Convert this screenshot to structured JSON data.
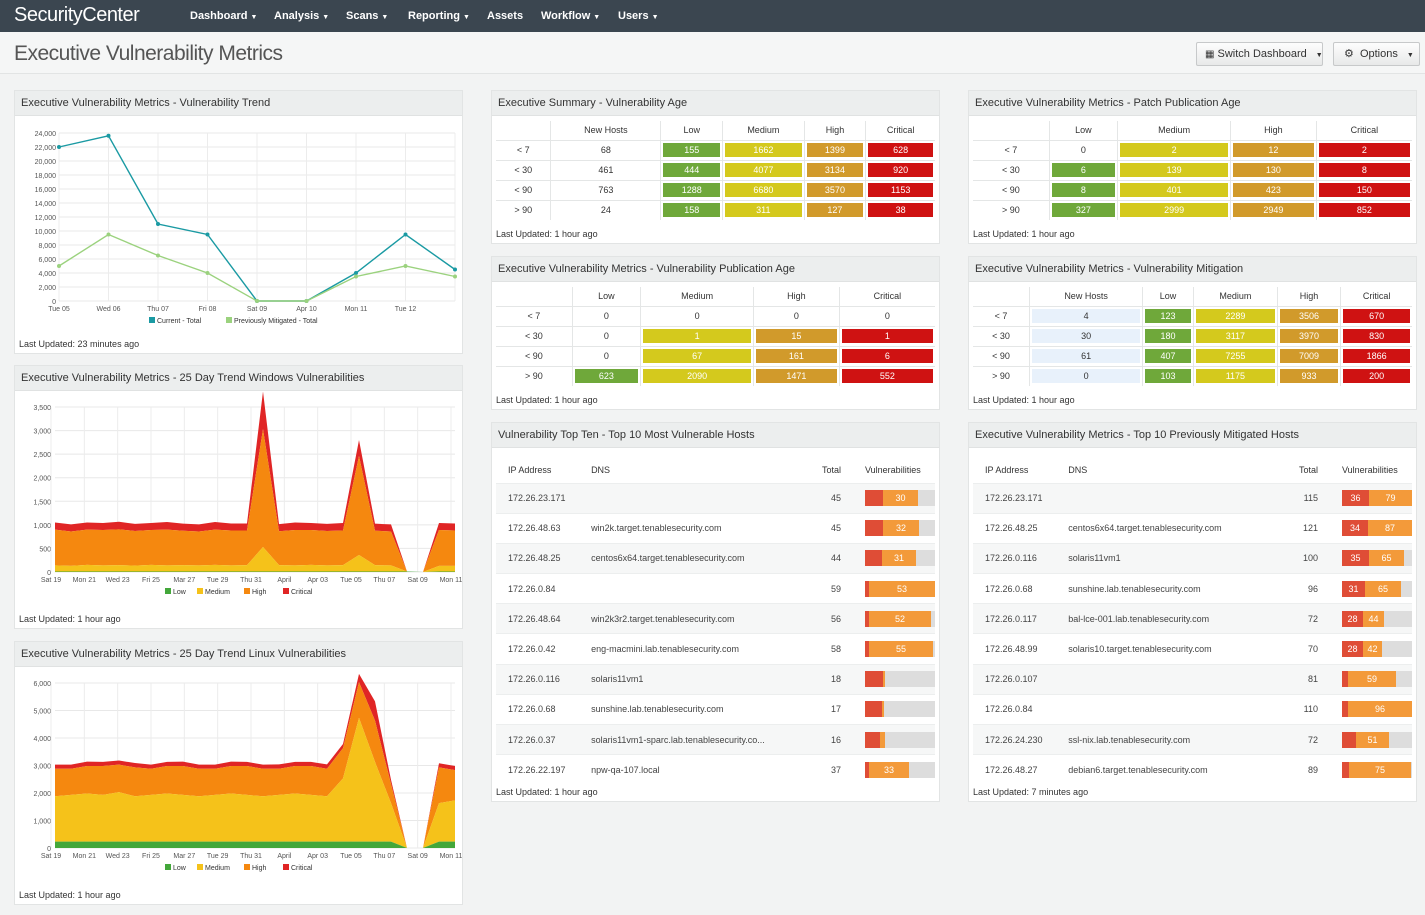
{
  "nav": {
    "brand": "SecurityCenter",
    "items": [
      "Dashboard",
      "Analysis",
      "Scans",
      "Reporting",
      "Assets",
      "Workflow",
      "Users"
    ]
  },
  "page": {
    "title": "Executive Vulnerability Metrics",
    "switch_label": "Switch Dashboard",
    "options_label": "Options"
  },
  "colors": {
    "low": "#6fa83a",
    "medium": "#d4c91d",
    "high": "#d19a2b",
    "critical": "#cf1212",
    "nav_bg": "#3b4650",
    "teal": "#1a9aa3",
    "green_line": "#9bd27e"
  },
  "trend": {
    "title": "Executive Vulnerability Metrics - Vulnerability Trend",
    "updated": "Last Updated: 23 minutes ago",
    "chart_data": {
      "type": "line",
      "x": [
        "Tue 05",
        "Wed 06",
        "Thu 07",
        "Fri 08",
        "Sat 09",
        "Apr 10",
        "Mon 11",
        "Tue 12",
        ""
      ],
      "y_ticks": [
        "24,000",
        "22,000",
        "20,000",
        "18,000",
        "16,000",
        "14,000",
        "12,000",
        "10,000",
        "8,000",
        "6,000",
        "4,000",
        "2,000",
        "0"
      ],
      "ylim": [
        0,
        24000
      ],
      "series": [
        {
          "name": "Current - Total",
          "color": "#1a9aa3",
          "values": [
            22000,
            23600,
            11000,
            9500,
            0,
            0,
            4000,
            9500,
            4500
          ]
        },
        {
          "name": "Previously Mitigated - Total",
          "color": "#9bd27e",
          "values": [
            5000,
            9500,
            6500,
            4000,
            0,
            0,
            3500,
            5000,
            3500
          ]
        }
      ]
    }
  },
  "win": {
    "title": "Executive Vulnerability Metrics - 25 Day Trend Windows Vulnerabilities",
    "updated": "Last Updated: 1 hour ago",
    "chart_data": {
      "type": "area",
      "x_ticks": [
        "Sat 19",
        "Mon 21",
        "Wed 23",
        "Fri 25",
        "Mar 27",
        "Tue 29",
        "Thu 31",
        "April",
        "Apr 03",
        "Tue 05",
        "Thu 07",
        "Sat 09",
        "Mon 11"
      ],
      "y_ticks": [
        "3,500",
        "3,000",
        "2,500",
        "2,000",
        "1,500",
        "1,000",
        "500",
        "0"
      ],
      "ylim": [
        0,
        3500
      ],
      "n_points": 26,
      "series": [
        {
          "name": "Low",
          "color": "#43a73a",
          "values": [
            10,
            10,
            10,
            10,
            10,
            10,
            10,
            10,
            10,
            10,
            10,
            10,
            10,
            10,
            10,
            10,
            10,
            10,
            10,
            10,
            10,
            10,
            10,
            0,
            10,
            10
          ]
        },
        {
          "name": "Medium",
          "color": "#f5c21a",
          "values": [
            130,
            120,
            140,
            130,
            135,
            125,
            140,
            130,
            135,
            130,
            140,
            130,
            135,
            520,
            135,
            130,
            140,
            130,
            135,
            350,
            135,
            130,
            0,
            0,
            120,
            120
          ]
        },
        {
          "name": "High",
          "color": "#f5880f",
          "values": [
            760,
            730,
            750,
            750,
            760,
            735,
            740,
            760,
            730,
            720,
            750,
            740,
            735,
            2500,
            720,
            750,
            740,
            730,
            735,
            2100,
            730,
            720,
            0,
            0,
            760,
            750
          ]
        },
        {
          "name": "Critical",
          "color": "#e02525",
          "values": [
            150,
            150,
            150,
            150,
            160,
            150,
            150,
            160,
            150,
            150,
            160,
            150,
            150,
            800,
            150,
            160,
            150,
            150,
            160,
            340,
            150,
            150,
            0,
            0,
            150,
            150
          ]
        }
      ]
    }
  },
  "lin": {
    "title": "Executive Vulnerability Metrics - 25 Day Trend Linux Vulnerabilities",
    "updated": "Last Updated: 1 hour ago",
    "chart_data": {
      "type": "area",
      "x_ticks": [
        "Sat 19",
        "Mon 21",
        "Wed 23",
        "Fri 25",
        "Mar 27",
        "Tue 29",
        "Thu 31",
        "April",
        "Apr 03",
        "Tue 05",
        "Thu 07",
        "Sat 09",
        "Mon 11"
      ],
      "y_ticks": [
        "6,000",
        "5,000",
        "4,000",
        "3,000",
        "2,000",
        "1,000",
        "0"
      ],
      "ylim": [
        0,
        6000
      ],
      "n_points": 26,
      "series": [
        {
          "name": "Low",
          "color": "#43a73a",
          "values": [
            230,
            230,
            230,
            230,
            230,
            230,
            230,
            230,
            230,
            230,
            230,
            230,
            230,
            230,
            230,
            230,
            230,
            230,
            230,
            230,
            230,
            230,
            0,
            0,
            230,
            230
          ]
        },
        {
          "name": "Medium",
          "color": "#f5c21a",
          "values": [
            1650,
            1700,
            1750,
            1700,
            1800,
            1650,
            1700,
            1750,
            1700,
            1650,
            1700,
            1750,
            1700,
            1650,
            1700,
            1750,
            1700,
            1650,
            2300,
            4500,
            2900,
            1400,
            0,
            0,
            1400,
            1500
          ]
        },
        {
          "name": "High",
          "color": "#f5880f",
          "values": [
            1000,
            950,
            1000,
            1050,
            1000,
            1050,
            950,
            1000,
            1050,
            1000,
            950,
            1000,
            1050,
            1000,
            950,
            1000,
            1050,
            1000,
            1100,
            1300,
            1500,
            700,
            0,
            0,
            1300,
            1100
          ]
        },
        {
          "name": "Critical",
          "color": "#e02525",
          "values": [
            150,
            150,
            160,
            150,
            150,
            160,
            150,
            150,
            160,
            150,
            150,
            160,
            150,
            150,
            160,
            150,
            150,
            160,
            150,
            300,
            700,
            150,
            0,
            0,
            150,
            150
          ]
        }
      ]
    }
  },
  "legend": {
    "low": "Low",
    "medium": "Medium",
    "high": "High",
    "critical": "Critical"
  },
  "summary": {
    "title": "Executive Summary - Vulnerability Age",
    "updated": "Last Updated: 1 hour ago",
    "headers": [
      "",
      "New Hosts",
      "Low",
      "Medium",
      "High",
      "Critical"
    ],
    "rows": [
      {
        "label": "< 7",
        "new": "68",
        "low": "155",
        "med": "1662",
        "high": "1399",
        "crit": "628"
      },
      {
        "label": "< 30",
        "new": "461",
        "low": "444",
        "med": "4077",
        "high": "3134",
        "crit": "920"
      },
      {
        "label": "< 90",
        "new": "763",
        "low": "1288",
        "med": "6680",
        "high": "3570",
        "crit": "1153"
      },
      {
        "label": "> 90",
        "new": "24",
        "low": "158",
        "med": "311",
        "high": "127",
        "crit": "38"
      }
    ]
  },
  "patch": {
    "title": "Executive Vulnerability Metrics - Patch Publication Age",
    "updated": "Last Updated: 1 hour ago",
    "headers": [
      "",
      "Low",
      "Medium",
      "High",
      "Critical"
    ],
    "rows": [
      {
        "label": "< 7",
        "low": "0",
        "med": "2",
        "high": "12",
        "crit": "2"
      },
      {
        "label": "< 30",
        "low": "6",
        "med": "139",
        "high": "130",
        "crit": "8"
      },
      {
        "label": "< 90",
        "low": "8",
        "med": "401",
        "high": "423",
        "crit": "150"
      },
      {
        "label": "> 90",
        "low": "327",
        "med": "2999",
        "high": "2949",
        "crit": "852"
      }
    ]
  },
  "pub": {
    "title": "Executive Vulnerability Metrics - Vulnerability Publication Age",
    "updated": "Last Updated: 1 hour ago",
    "headers": [
      "",
      "Low",
      "Medium",
      "High",
      "Critical"
    ],
    "rows": [
      {
        "label": "< 7",
        "low": "0",
        "med": "0",
        "high": "0",
        "crit": "0"
      },
      {
        "label": "< 30",
        "low": "0",
        "med": "1",
        "high": "15",
        "crit": "1"
      },
      {
        "label": "< 90",
        "low": "0",
        "med": "67",
        "high": "161",
        "crit": "6"
      },
      {
        "label": "> 90",
        "low": "623",
        "med": "2090",
        "high": "1471",
        "crit": "552"
      }
    ]
  },
  "mit": {
    "title": "Executive Vulnerability Metrics - Vulnerability Mitigation",
    "updated": "Last Updated: 1 hour ago",
    "headers": [
      "",
      "New Hosts",
      "Low",
      "Medium",
      "High",
      "Critical"
    ],
    "rows": [
      {
        "label": "< 7",
        "new": "4",
        "low": "123",
        "med": "2289",
        "high": "3506",
        "crit": "670"
      },
      {
        "label": "< 30",
        "new": "30",
        "low": "180",
        "med": "3117",
        "high": "3970",
        "crit": "830"
      },
      {
        "label": "< 90",
        "new": "61",
        "low": "407",
        "med": "7255",
        "high": "7009",
        "crit": "1866"
      },
      {
        "label": "> 90",
        "new": "0",
        "low": "103",
        "med": "1175",
        "high": "933",
        "crit": "200"
      }
    ]
  },
  "top": {
    "title": "Vulnerability Top Ten - Top 10 Most Vulnerable Hosts",
    "updated": "Last Updated: 1 hour ago",
    "headers": {
      "ip": "IP Address",
      "dns": "DNS",
      "total": "Total",
      "vulns": "Vulnerabilities"
    },
    "rows": [
      {
        "ip": "172.26.23.171",
        "dns": "",
        "total": "45",
        "crit": 0.25,
        "high": 0.75,
        "label": "30"
      },
      {
        "ip": "172.26.48.63",
        "dns": "win2k.target.tenablesecurity.com",
        "total": "45",
        "crit": 0.25,
        "high": 0.77,
        "label": "32"
      },
      {
        "ip": "172.26.48.25",
        "dns": "centos6x64.target.tenablesecurity.com",
        "total": "44",
        "crit": 0.24,
        "high": 0.73,
        "label": "31"
      },
      {
        "ip": "172.26.0.84",
        "dns": "",
        "total": "59",
        "crit": 0.06,
        "high": 1.0,
        "label": "53"
      },
      {
        "ip": "172.26.48.64",
        "dns": "win2k3r2.target.tenablesecurity.com",
        "total": "56",
        "crit": 0.06,
        "high": 0.95,
        "label": "52"
      },
      {
        "ip": "172.26.0.42",
        "dns": "eng-macmini.lab.tenablesecurity.com",
        "total": "58",
        "crit": 0.06,
        "high": 0.98,
        "label": "55"
      },
      {
        "ip": "172.26.0.116",
        "dns": "solaris11vm1",
        "total": "18",
        "crit": 0.25,
        "high": 0.28,
        "label": ""
      },
      {
        "ip": "172.26.0.68",
        "dns": "sunshine.lab.tenablesecurity.com",
        "total": "17",
        "crit": 0.24,
        "high": 0.27,
        "label": ""
      },
      {
        "ip": "172.26.0.37",
        "dns": "solaris11vm1-sparc.lab.tenablesecurity.co...",
        "total": "16",
        "crit": 0.21,
        "high": 0.28,
        "label": ""
      },
      {
        "ip": "172.26.22.197",
        "dns": "npw-qa-107.local",
        "total": "37",
        "crit": 0.06,
        "high": 0.63,
        "label": "33"
      }
    ]
  },
  "prev": {
    "title": "Executive Vulnerability Metrics - Top 10 Previously Mitigated Hosts",
    "updated": "Last Updated: 7 minutes ago",
    "headers": {
      "ip": "IP Address",
      "dns": "DNS",
      "total": "Total",
      "vulns": "Vulnerabilities"
    },
    "rows": [
      {
        "ip": "172.26.23.171",
        "dns": "",
        "total": "115",
        "crit": 0.38,
        "high": 1.0,
        "critlabel": "36",
        "label": "79"
      },
      {
        "ip": "172.26.48.25",
        "dns": "centos6x64.target.tenablesecurity.com",
        "total": "121",
        "crit": 0.37,
        "high": 1.0,
        "critlabel": "34",
        "label": "87"
      },
      {
        "ip": "172.26.0.116",
        "dns": "solaris11vm1",
        "total": "100",
        "crit": 0.38,
        "high": 0.88,
        "critlabel": "35",
        "label": "65"
      },
      {
        "ip": "172.26.0.68",
        "dns": "sunshine.lab.tenablesecurity.com",
        "total": "96",
        "crit": 0.33,
        "high": 0.85,
        "critlabel": "31",
        "label": "65"
      },
      {
        "ip": "172.26.0.117",
        "dns": "bal-lce-001.lab.tenablesecurity.com",
        "total": "72",
        "crit": 0.3,
        "high": 0.6,
        "critlabel": "28",
        "label": "44"
      },
      {
        "ip": "172.26.48.99",
        "dns": "solaris10.target.tenablesecurity.com",
        "total": "70",
        "crit": 0.3,
        "high": 0.57,
        "critlabel": "28",
        "label": "42"
      },
      {
        "ip": "172.26.0.107",
        "dns": "",
        "total": "81",
        "crit": 0.08,
        "high": 0.76,
        "critlabel": "",
        "label": "59"
      },
      {
        "ip": "172.26.0.84",
        "dns": "",
        "total": "110",
        "crit": 0.08,
        "high": 1.0,
        "critlabel": "",
        "label": "96"
      },
      {
        "ip": "172.26.24.230",
        "dns": "ssl-nix.lab.tenablesecurity.com",
        "total": "72",
        "crit": 0.2,
        "high": 0.67,
        "critlabel": "",
        "label": "51"
      },
      {
        "ip": "172.26.48.27",
        "dns": "debian6.target.tenablesecurity.com",
        "total": "89",
        "crit": 0.1,
        "high": 0.98,
        "critlabel": "",
        "label": "75"
      }
    ]
  }
}
